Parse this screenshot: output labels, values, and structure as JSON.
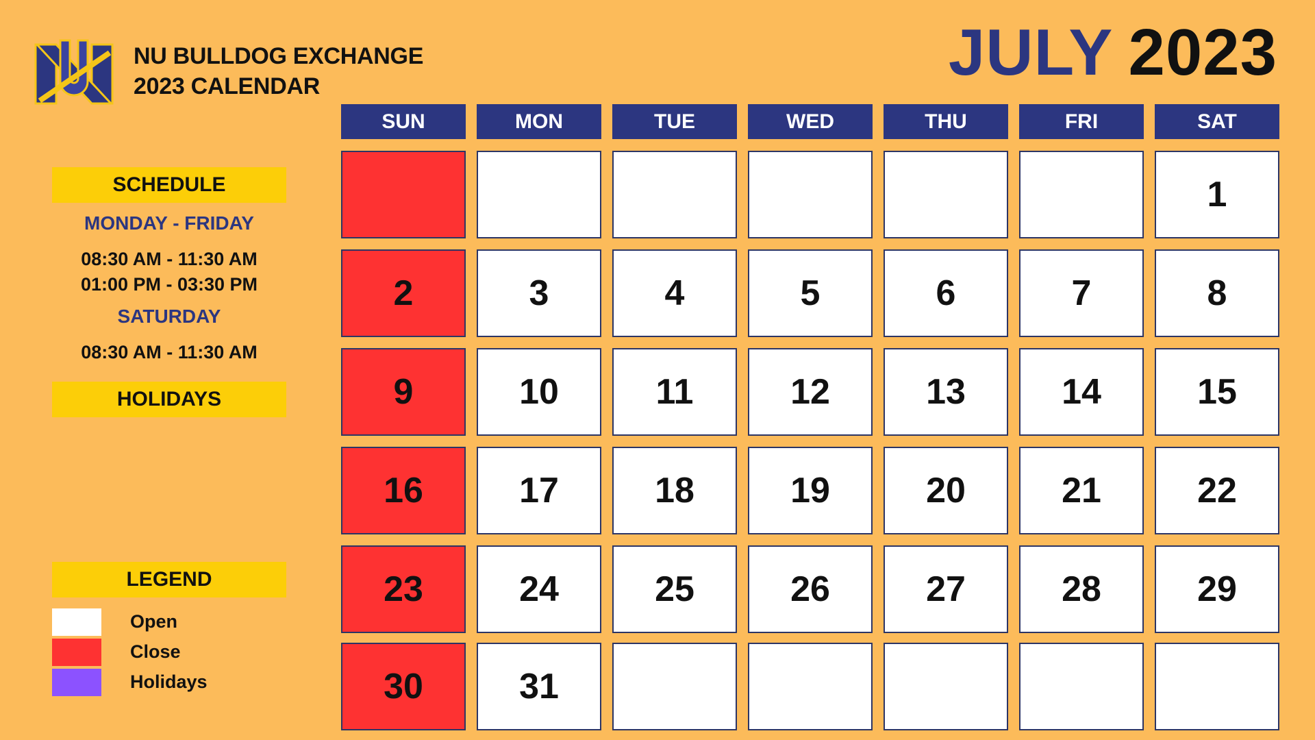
{
  "header": {
    "org_line1": "NU BULLDOG EXCHANGE",
    "org_line2": "2023 CALENDAR",
    "month": "JULY",
    "year": "2023",
    "logo_icon": "nu-bulldog-logo"
  },
  "schedule": {
    "heading": "SCHEDULE",
    "weekday_label": "MONDAY - FRIDAY",
    "weekday_times": [
      "08:30 AM - 11:30 AM",
      "01:00 PM - 03:30 PM"
    ],
    "saturday_label": "SATURDAY",
    "saturday_times": [
      "08:30 AM - 11:30 AM"
    ]
  },
  "holidays": {
    "heading": "HOLIDAYS"
  },
  "legend": {
    "heading": "LEGEND",
    "items": [
      {
        "label": "Open",
        "color": "#ffffff"
      },
      {
        "label": "Close",
        "color": "#fe3232"
      },
      {
        "label": "Holidays",
        "color": "#8c52ff"
      }
    ]
  },
  "calendar": {
    "days": [
      "SUN",
      "MON",
      "TUE",
      "WED",
      "THU",
      "FRI",
      "SAT"
    ],
    "weeks": [
      [
        {
          "d": "",
          "closed": true
        },
        {
          "d": ""
        },
        {
          "d": ""
        },
        {
          "d": ""
        },
        {
          "d": ""
        },
        {
          "d": ""
        },
        {
          "d": "1"
        }
      ],
      [
        {
          "d": "2",
          "closed": true
        },
        {
          "d": "3"
        },
        {
          "d": "4"
        },
        {
          "d": "5"
        },
        {
          "d": "6"
        },
        {
          "d": "7"
        },
        {
          "d": "8"
        }
      ],
      [
        {
          "d": "9",
          "closed": true
        },
        {
          "d": "10"
        },
        {
          "d": "11"
        },
        {
          "d": "12"
        },
        {
          "d": "13"
        },
        {
          "d": "14"
        },
        {
          "d": "15"
        }
      ],
      [
        {
          "d": "16",
          "closed": true
        },
        {
          "d": "17"
        },
        {
          "d": "18"
        },
        {
          "d": "19"
        },
        {
          "d": "20"
        },
        {
          "d": "21"
        },
        {
          "d": "22"
        }
      ],
      [
        {
          "d": "23",
          "closed": true
        },
        {
          "d": "24"
        },
        {
          "d": "25"
        },
        {
          "d": "26"
        },
        {
          "d": "27"
        },
        {
          "d": "28"
        },
        {
          "d": "29"
        }
      ],
      [
        {
          "d": "30",
          "closed": true
        },
        {
          "d": "31"
        },
        {
          "d": ""
        },
        {
          "d": ""
        },
        {
          "d": ""
        },
        {
          "d": ""
        },
        {
          "d": ""
        }
      ]
    ]
  },
  "colors": {
    "background": "#fcbb5a",
    "navy": "#2c3680",
    "yellow": "#fcce08",
    "closed": "#fe3232",
    "open": "#ffffff"
  }
}
